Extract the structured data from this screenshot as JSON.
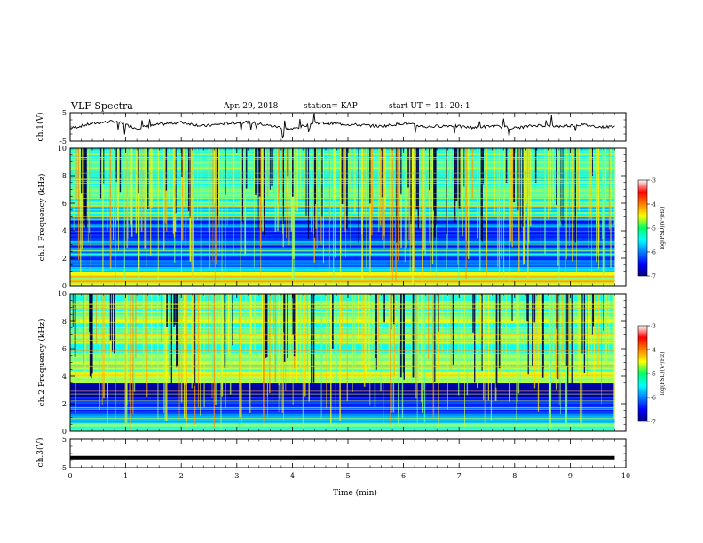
{
  "header": {
    "title": "VLF Spectra",
    "date": "Apr. 29, 2018",
    "station": "station= KAP",
    "start": "start  UT =  11: 20: 1"
  },
  "chart_data": [
    {
      "type": "line",
      "panel": "ch.1 waveform",
      "title": "",
      "xlabel": "",
      "ylabel": "ch.1(V)",
      "xlim": [
        0,
        10
      ],
      "ylim": [
        -5,
        5
      ],
      "yticks": [
        -5,
        5
      ],
      "series": [
        {
          "x": [
            0,
            0.4,
            0.8,
            1.2,
            1.6,
            2.0,
            2.4,
            2.8,
            3.2,
            3.6,
            4.0,
            4.4,
            4.8,
            5.2,
            5.6,
            6.0,
            6.4,
            6.8,
            7.2,
            7.6,
            8.0,
            8.4,
            8.8,
            9.2,
            9.6,
            9.8
          ],
          "y": [
            -0.5,
            1.2,
            2.0,
            -0.5,
            0.9,
            1.6,
            0.3,
            1.2,
            1.8,
            0.4,
            -0.8,
            1.5,
            1.1,
            0.7,
            0.2,
            1.3,
            0.0,
            0.5,
            -0.2,
            0.3,
            -0.4,
            0.6,
            0.2,
            0.8,
            -0.1,
            0.3
          ]
        }
      ]
    },
    {
      "type": "heatmap",
      "panel": "ch.1 spectrogram",
      "title": "",
      "xlabel": "",
      "ylabel": "ch.1 Frequency (kHz)",
      "xlim": [
        0,
        10
      ],
      "ylim": [
        0,
        10
      ],
      "yticks": [
        0,
        2,
        4,
        6,
        8,
        10
      ],
      "colorbar": {
        "label": "log(PSD)(V²/Hz)",
        "ticks": [
          -3,
          -4,
          -5,
          -6,
          -7
        ],
        "range": [
          -7,
          -3
        ],
        "colormap": "jet"
      }
    },
    {
      "type": "heatmap",
      "panel": "ch.2 spectrogram",
      "title": "",
      "xlabel": "",
      "ylabel": "ch.2 Frequency (kHz)",
      "xlim": [
        0,
        10
      ],
      "ylim": [
        0,
        10
      ],
      "yticks": [
        0,
        2,
        4,
        6,
        8,
        10
      ],
      "colorbar": {
        "label": "log(PSD)(V²/Hz)",
        "ticks": [
          -3,
          -4,
          -5,
          -6,
          -7
        ],
        "range": [
          -7,
          -3
        ],
        "colormap": "jet"
      }
    },
    {
      "type": "line",
      "panel": "ch.3 waveform",
      "title": "",
      "xlabel": "Time (min)",
      "ylabel": "ch.3(V)",
      "xlim": [
        0,
        10
      ],
      "ylim": [
        -5,
        5
      ],
      "yticks": [
        -5,
        5
      ],
      "xticks": [
        0,
        1,
        2,
        3,
        4,
        5,
        6,
        7,
        8,
        9,
        10
      ],
      "series": [
        {
          "x": [
            0,
            9.8
          ],
          "y": [
            -1.5,
            -1.5
          ]
        }
      ]
    }
  ]
}
